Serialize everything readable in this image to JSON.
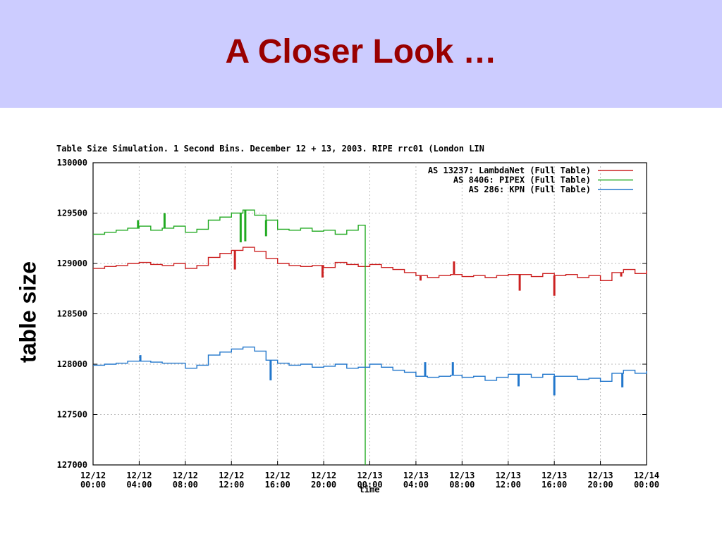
{
  "slide": {
    "title": "A Closer Look …",
    "ylabel": "table size",
    "colors": {
      "band": "#ccccff",
      "title": "#990000"
    }
  },
  "chart_data": {
    "type": "line",
    "title": "Table Size Simulation. 1 Second Bins. December 12 + 13, 2003.  RIPE rrc01 (London LIN",
    "xlabel": "time",
    "ylabel": "table size",
    "ylim": [
      127000,
      130000
    ],
    "xlim": [
      0,
      48
    ],
    "yticks": [
      127000,
      127500,
      128000,
      128500,
      129000,
      129500,
      130000
    ],
    "ytick_labels": [
      "127000",
      "127500",
      "128000",
      "128500",
      "129000",
      "129500",
      "130000"
    ],
    "xtick_labels": [
      [
        "12/12",
        "00:00"
      ],
      [
        "12/12",
        "04:00"
      ],
      [
        "12/12",
        "08:00"
      ],
      [
        "12/12",
        "12:00"
      ],
      [
        "12/12",
        "16:00"
      ],
      [
        "12/12",
        "20:00"
      ],
      [
        "12/13",
        "00:00"
      ],
      [
        "12/13",
        "04:00"
      ],
      [
        "12/13",
        "08:00"
      ],
      [
        "12/13",
        "12:00"
      ],
      [
        "12/13",
        "16:00"
      ],
      [
        "12/13",
        "20:00"
      ],
      [
        "12/14",
        "00:00"
      ]
    ],
    "grid": true,
    "legend_position": "top-right",
    "series": [
      {
        "name": "AS 13237: LambdaNet (Full Table)",
        "color": "#cc2222",
        "points": [
          [
            0,
            128950
          ],
          [
            1,
            128970
          ],
          [
            2,
            128980
          ],
          [
            3,
            129000
          ],
          [
            4,
            129010
          ],
          [
            5,
            128990
          ],
          [
            6,
            128980
          ],
          [
            7,
            129000
          ],
          [
            8,
            128950
          ],
          [
            9,
            128980
          ],
          [
            10,
            129060
          ],
          [
            11,
            129100
          ],
          [
            12,
            129130
          ],
          [
            13,
            129160
          ],
          [
            14,
            129120
          ],
          [
            15,
            129050
          ],
          [
            16,
            129000
          ],
          [
            17,
            128980
          ],
          [
            18,
            128970
          ],
          [
            19,
            128980
          ],
          [
            20,
            128960
          ],
          [
            21,
            129010
          ],
          [
            22,
            128990
          ],
          [
            23,
            128970
          ],
          [
            24,
            128990
          ],
          [
            25,
            128960
          ],
          [
            26,
            128940
          ],
          [
            27,
            128910
          ],
          [
            28,
            128880
          ],
          [
            29,
            128860
          ],
          [
            30,
            128880
          ],
          [
            31,
            128890
          ],
          [
            32,
            128870
          ],
          [
            33,
            128880
          ],
          [
            34,
            128860
          ],
          [
            35,
            128880
          ],
          [
            36,
            128890
          ],
          [
            37,
            128890
          ],
          [
            38,
            128870
          ],
          [
            39,
            128900
          ],
          [
            40,
            128880
          ],
          [
            41,
            128890
          ],
          [
            42,
            128860
          ],
          [
            43,
            128880
          ],
          [
            44,
            128830
          ],
          [
            45,
            128910
          ],
          [
            46,
            128940
          ],
          [
            47,
            128900
          ],
          [
            48,
            128930
          ]
        ],
        "spikes": [
          [
            12.3,
            128940
          ],
          [
            19.9,
            128860
          ],
          [
            28.4,
            128830
          ],
          [
            31.3,
            129020
          ],
          [
            37.0,
            128730
          ],
          [
            40.0,
            128680
          ],
          [
            45.8,
            128870
          ]
        ]
      },
      {
        "name": "AS 8406: PIPEX (Full Table)",
        "color": "#22aa22",
        "points": [
          [
            0,
            129290
          ],
          [
            1,
            129310
          ],
          [
            2,
            129330
          ],
          [
            3,
            129350
          ],
          [
            4,
            129370
          ],
          [
            5,
            129330
          ],
          [
            6,
            129350
          ],
          [
            7,
            129370
          ],
          [
            8,
            129310
          ],
          [
            9,
            129340
          ],
          [
            10,
            129430
          ],
          [
            11,
            129460
          ],
          [
            12,
            129500
          ],
          [
            13,
            129530
          ],
          [
            14,
            129480
          ],
          [
            15,
            129430
          ],
          [
            16,
            129340
          ],
          [
            17,
            129330
          ],
          [
            18,
            129350
          ],
          [
            19,
            129320
          ],
          [
            20,
            129330
          ],
          [
            21,
            129290
          ],
          [
            22,
            129330
          ],
          [
            23,
            129380
          ],
          [
            23.6,
            129370
          ],
          [
            23.6,
            127000
          ]
        ],
        "spikes": [
          [
            3.9,
            129430
          ],
          [
            6.2,
            129500
          ],
          [
            12.8,
            129210
          ],
          [
            13.2,
            129220
          ],
          [
            15.0,
            129270
          ]
        ]
      },
      {
        "name": "AS 286: KPN (Full Table)",
        "color": "#2277cc",
        "points": [
          [
            0,
            127990
          ],
          [
            1,
            128000
          ],
          [
            2,
            128010
          ],
          [
            3,
            128030
          ],
          [
            4,
            128030
          ],
          [
            5,
            128020
          ],
          [
            6,
            128010
          ],
          [
            7,
            128010
          ],
          [
            8,
            127960
          ],
          [
            9,
            127990
          ],
          [
            10,
            128090
          ],
          [
            11,
            128120
          ],
          [
            12,
            128150
          ],
          [
            13,
            128170
          ],
          [
            14,
            128130
          ],
          [
            15,
            128040
          ],
          [
            16,
            128010
          ],
          [
            17,
            127990
          ],
          [
            18,
            128000
          ],
          [
            19,
            127970
          ],
          [
            20,
            127980
          ],
          [
            21,
            128000
          ],
          [
            22,
            127960
          ],
          [
            23,
            127970
          ],
          [
            24,
            128000
          ],
          [
            25,
            127970
          ],
          [
            26,
            127940
          ],
          [
            27,
            127920
          ],
          [
            28,
            127880
          ],
          [
            29,
            127870
          ],
          [
            30,
            127880
          ],
          [
            31,
            127890
          ],
          [
            32,
            127870
          ],
          [
            33,
            127880
          ],
          [
            34,
            127840
          ],
          [
            35,
            127870
          ],
          [
            36,
            127900
          ],
          [
            37,
            127900
          ],
          [
            38,
            127870
          ],
          [
            39,
            127900
          ],
          [
            40,
            127880
          ],
          [
            41,
            127880
          ],
          [
            42,
            127850
          ],
          [
            43,
            127860
          ],
          [
            44,
            127830
          ],
          [
            45,
            127910
          ],
          [
            46,
            127940
          ],
          [
            47,
            127910
          ],
          [
            48,
            127930
          ]
        ],
        "spikes": [
          [
            4.1,
            128090
          ],
          [
            15.4,
            127840
          ],
          [
            28.8,
            128020
          ],
          [
            31.2,
            128020
          ],
          [
            36.9,
            127780
          ],
          [
            40.0,
            127690
          ],
          [
            45.9,
            127770
          ]
        ]
      }
    ]
  }
}
